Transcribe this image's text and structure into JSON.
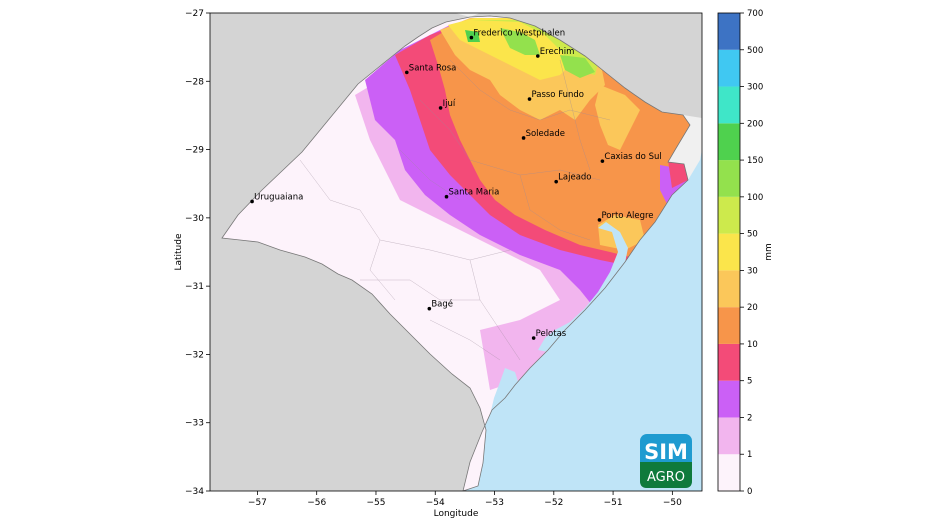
{
  "axes": {
    "xlabel": "Longitude",
    "ylabel": "Latitude",
    "xlim": [
      -57.8,
      -49.5
    ],
    "ylim": [
      -34,
      -27
    ],
    "xticks": [
      {
        "value": -57,
        "label": "−57"
      },
      {
        "value": -56,
        "label": "−56"
      },
      {
        "value": -55,
        "label": "−55"
      },
      {
        "value": -54,
        "label": "−54"
      },
      {
        "value": -53,
        "label": "−53"
      },
      {
        "value": -52,
        "label": "−52"
      },
      {
        "value": -51,
        "label": "−51"
      },
      {
        "value": -50,
        "label": "−50"
      }
    ],
    "yticks": [
      {
        "value": -27,
        "label": "−27"
      },
      {
        "value": -28,
        "label": "−28"
      },
      {
        "value": -29,
        "label": "−29"
      },
      {
        "value": -30,
        "label": "−30"
      },
      {
        "value": -31,
        "label": "−31"
      },
      {
        "value": -32,
        "label": "−32"
      },
      {
        "value": -33,
        "label": "−33"
      },
      {
        "value": -34,
        "label": "−34"
      }
    ]
  },
  "cities": [
    {
      "name": "Frederico Westphalen",
      "lon": -53.39,
      "lat": -27.36
    },
    {
      "name": "Erechim",
      "lon": -52.27,
      "lat": -27.63
    },
    {
      "name": "Santa Rosa",
      "lon": -54.48,
      "lat": -27.87
    },
    {
      "name": "Passo Fundo",
      "lon": -52.41,
      "lat": -28.26
    },
    {
      "name": "Ijuí",
      "lon": -53.91,
      "lat": -28.39
    },
    {
      "name": "Soledade",
      "lon": -52.51,
      "lat": -28.83
    },
    {
      "name": "Caxias do Sul",
      "lon": -51.18,
      "lat": -29.17
    },
    {
      "name": "Lajeado",
      "lon": -51.96,
      "lat": -29.47
    },
    {
      "name": "Santa Maria",
      "lon": -53.81,
      "lat": -29.69
    },
    {
      "name": "Uruguaiana",
      "lon": -57.09,
      "lat": -29.76
    },
    {
      "name": "Porto Alegre",
      "lon": -51.23,
      "lat": -30.03
    },
    {
      "name": "Bagé",
      "lon": -54.1,
      "lat": -31.33
    },
    {
      "name": "Pelotas",
      "lon": -52.34,
      "lat": -31.76
    }
  ],
  "colorbar": {
    "label": "mm",
    "levels": [
      "0",
      "1",
      "2",
      "5",
      "10",
      "20",
      "30",
      "50",
      "100",
      "150",
      "200",
      "300",
      "500",
      "700"
    ],
    "colors": [
      "#fdf3fb",
      "#f2b5ee",
      "#cb60f6",
      "#f34b78",
      "#f7954a",
      "#fbc75a",
      "#fbe54b",
      "#cdea4c",
      "#93e14d",
      "#4fd14e",
      "#3fe6c8",
      "#40c8f2",
      "#3d73c4",
      "#4146a8"
    ]
  },
  "logo": {
    "line1": "SIM",
    "line2": "AGRO"
  },
  "colors": {
    "neighbor_land": "#d4d4d4",
    "ocean": "#bfe4f7",
    "lagoon": "#bfe4f7",
    "map_border": "#777777"
  }
}
